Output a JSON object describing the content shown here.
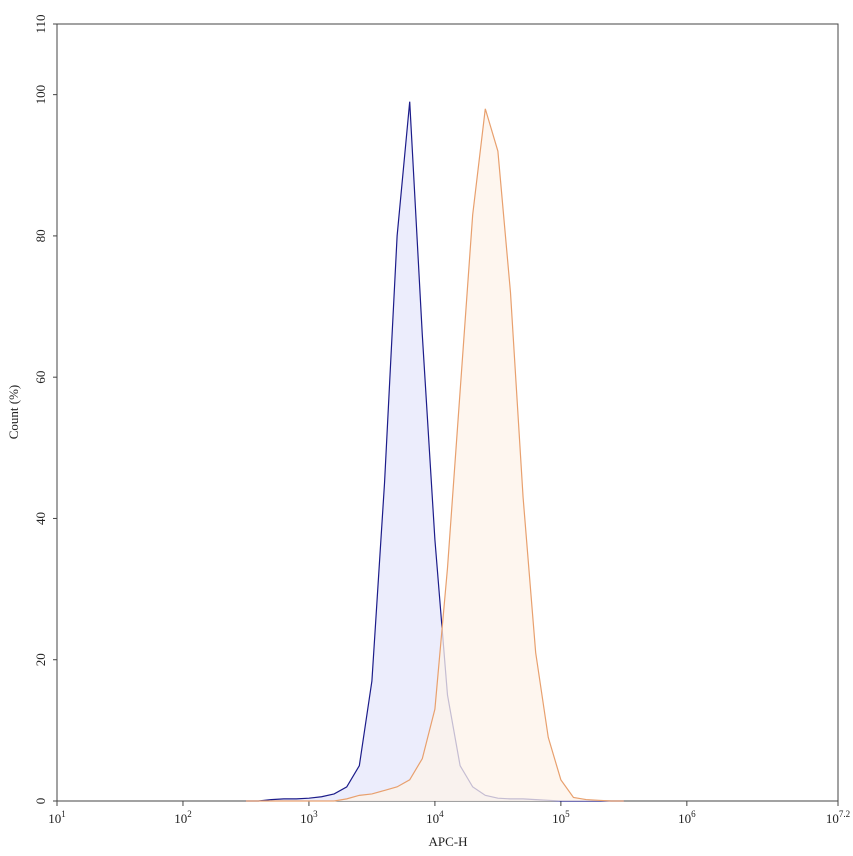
{
  "chart_data": {
    "type": "line",
    "x_label": "APC-H",
    "y_label": "Count (%)",
    "x_scale": "log",
    "x": [
      316,
      398,
      501,
      631,
      794,
      1000,
      1259,
      1585,
      1995,
      2512,
      3162,
      3981,
      5012,
      6310,
      7943,
      10000,
      12589,
      15849,
      19953,
      25119,
      31623,
      39811,
      50119,
      63096,
      79433,
      100000,
      125893,
      158489,
      199526,
      251189,
      316228
    ],
    "series": [
      {
        "color": "#1c1c8a",
        "fill": "#e5e7fb",
        "values": [
          0,
          0,
          0.2,
          0.3,
          0.3,
          0.4,
          0.6,
          1,
          2,
          5,
          17,
          45,
          80,
          99,
          66,
          37,
          15,
          5,
          2,
          0.8,
          0.4,
          0.3,
          0.3,
          0.2,
          0.1,
          0,
          0,
          0,
          0,
          0,
          0
        ]
      },
      {
        "color": "#e8a06e",
        "fill": "#fdf3ea",
        "values": [
          0,
          0,
          0,
          0,
          0,
          0,
          0,
          0,
          0.3,
          0.8,
          1,
          1.5,
          2,
          3,
          6,
          13,
          33,
          58,
          83,
          98,
          92,
          72,
          43,
          21,
          9,
          3,
          0.5,
          0.2,
          0.1,
          0,
          0
        ]
      }
    ],
    "xlim": [
      10,
      15848931.92
    ],
    "xticks": [
      {
        "value": 10,
        "label": "10",
        "exponent": "1"
      },
      {
        "value": 100,
        "label": "10",
        "exponent": "2"
      },
      {
        "value": 1000,
        "label": "10",
        "exponent": "3"
      },
      {
        "value": 10000,
        "label": "10",
        "exponent": "4"
      },
      {
        "value": 100000,
        "label": "10",
        "exponent": "5"
      },
      {
        "value": 1000000,
        "label": "10",
        "exponent": "6"
      },
      {
        "value": 15848931.92,
        "label": "10",
        "exponent": "7.2"
      }
    ],
    "ylim": [
      0,
      110
    ],
    "yticks": [
      0,
      20,
      40,
      60,
      80,
      100,
      110
    ],
    "grid": false
  }
}
